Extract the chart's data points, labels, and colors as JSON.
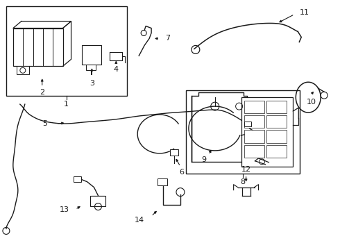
{
  "background_color": "#ffffff",
  "line_color": "#1a1a1a",
  "figure_width": 4.9,
  "figure_height": 3.6,
  "dpi": 100
}
